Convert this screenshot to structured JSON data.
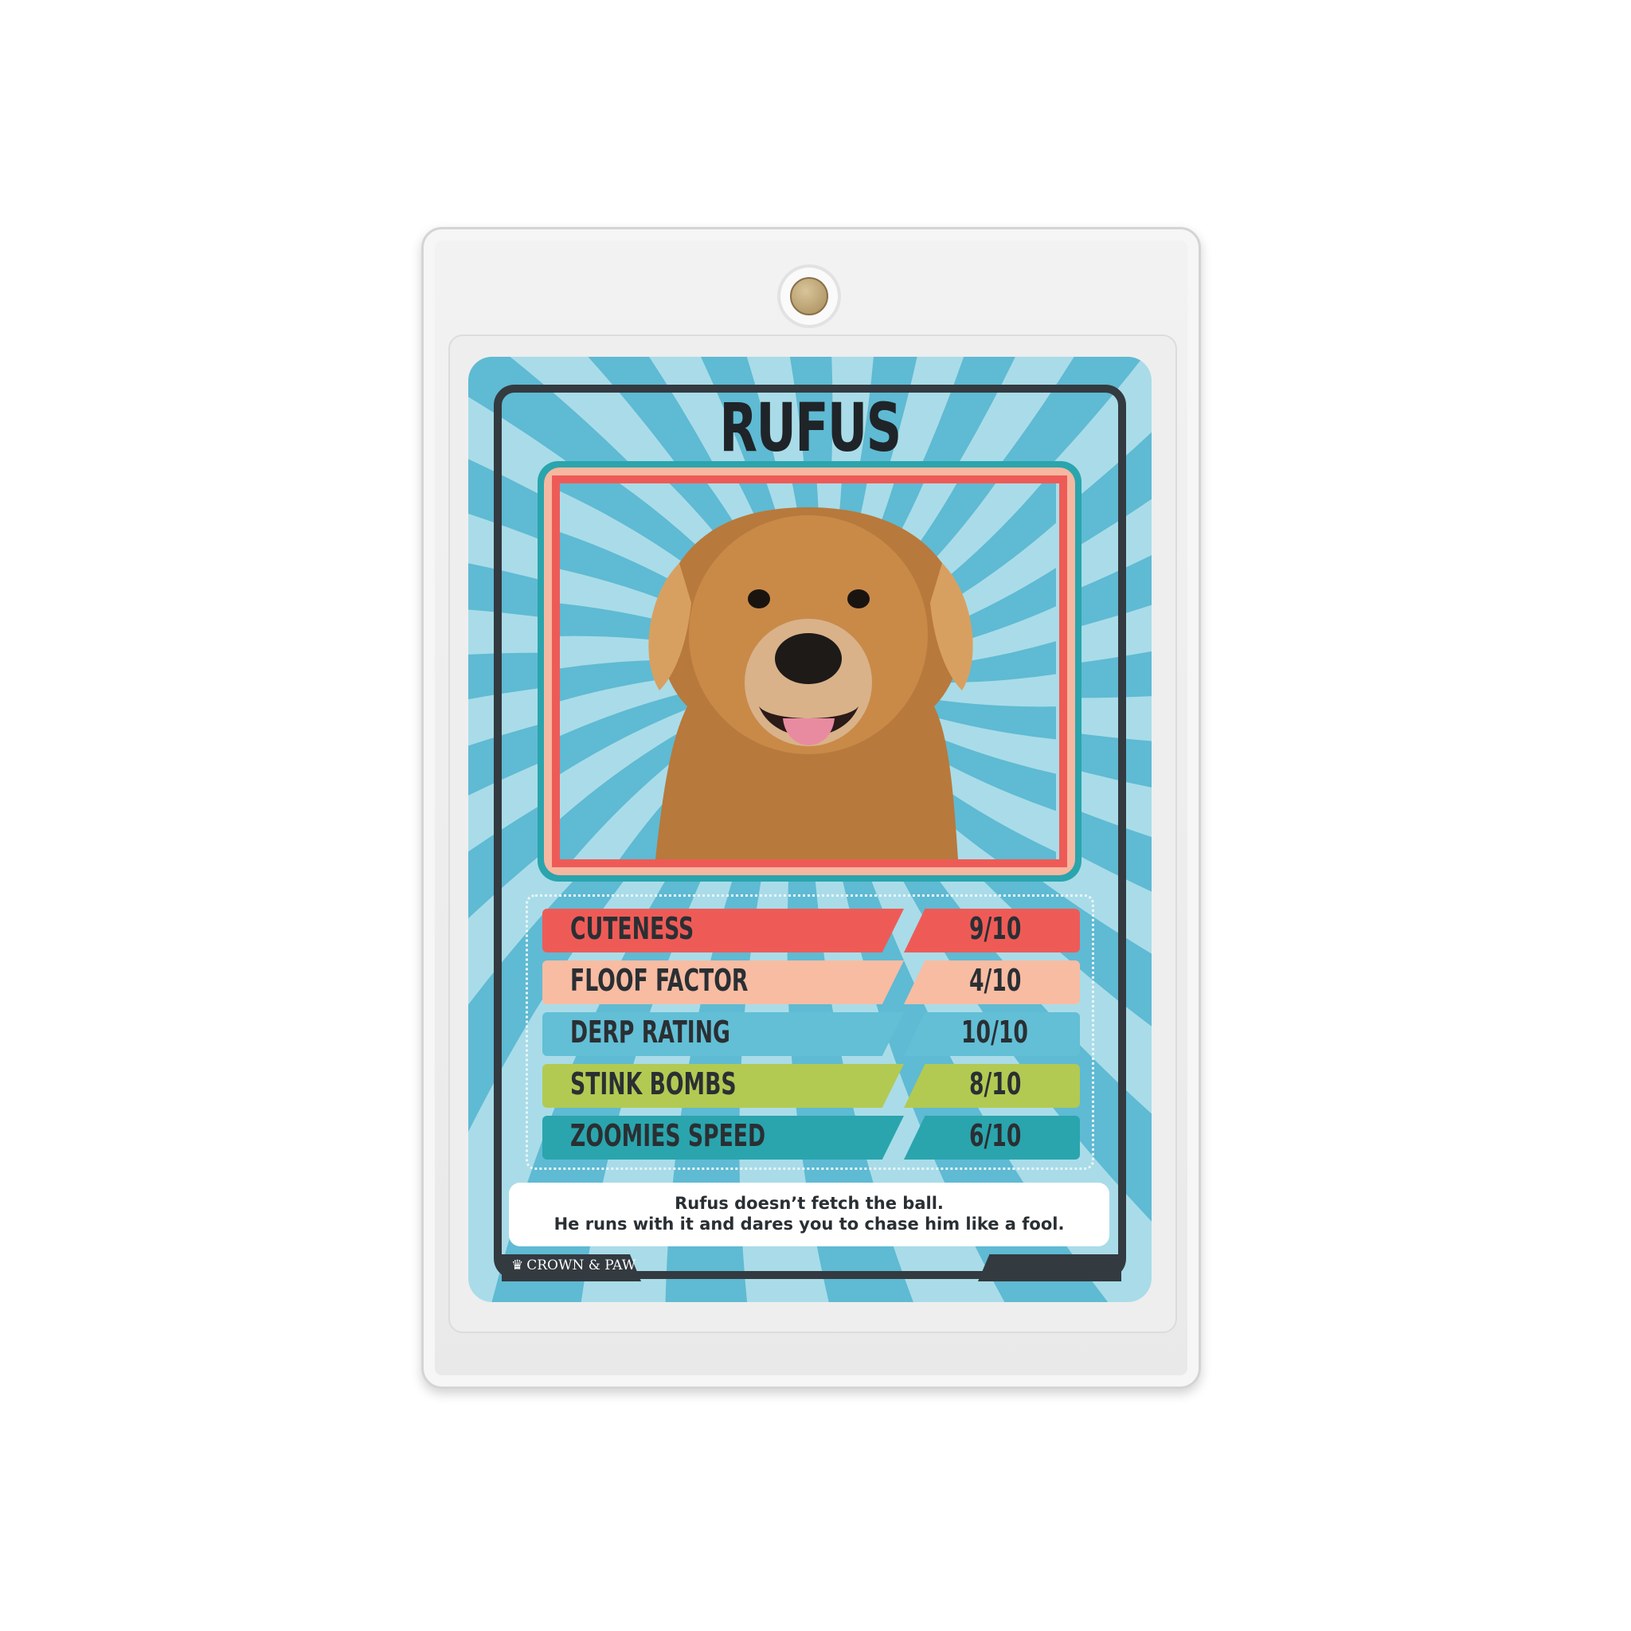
{
  "card": {
    "name": "RUFUS",
    "stats": [
      {
        "label": "CUTENESS",
        "value": "9/10",
        "color": "#ee5b57"
      },
      {
        "label": "FLOOF FACTOR",
        "value": "4/10",
        "color": "#f8bca3"
      },
      {
        "label": "DERP RATING",
        "value": "10/10",
        "color": "#62bfd6"
      },
      {
        "label": "STINK BOMBS",
        "value": "8/10",
        "color": "#b2ca52"
      },
      {
        "label": "ZOOMIES SPEED",
        "value": "6/10",
        "color": "#2aa5ad"
      }
    ],
    "quote_line1": "Rufus doesn’t fetch the ball.",
    "quote_line2": "He runs with it and dares you to chase him like a fool.",
    "brand": "CROWN & PAW",
    "photo_icon": "golden-retriever-photo",
    "background_color": "#a9dce8",
    "ray_color": "#5fbad3"
  }
}
